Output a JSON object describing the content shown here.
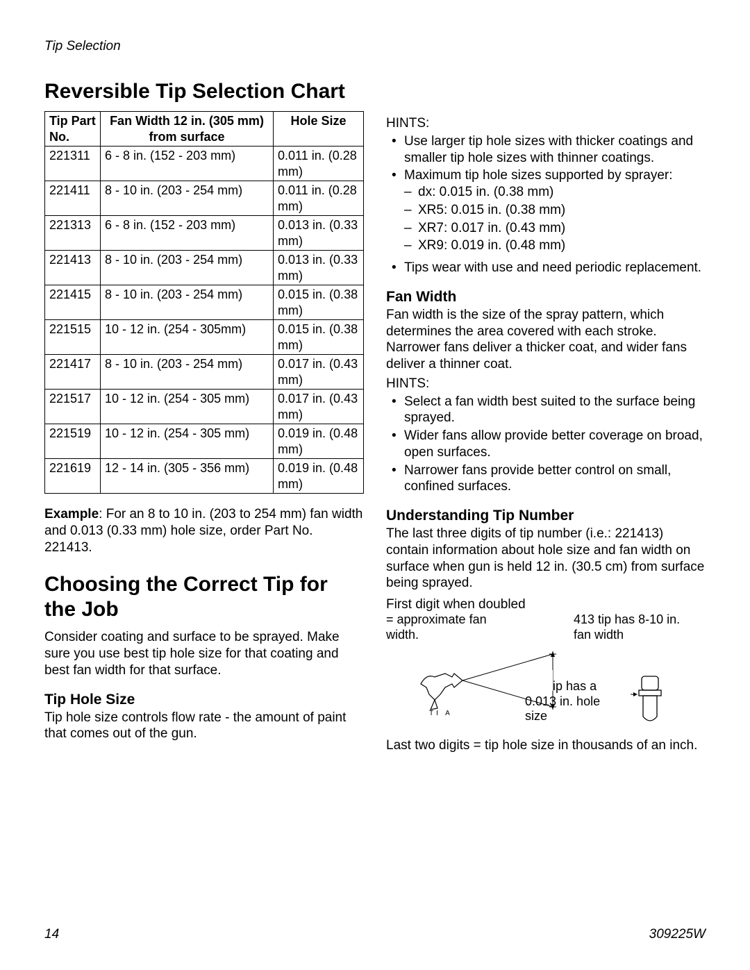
{
  "breadcrumb": "Tip Selection",
  "heading1": "Reversible Tip Selection Chart",
  "table": {
    "columns": [
      "Tip Part No.",
      "Fan Width 12 in. (305 mm) from surface",
      "Hole Size"
    ],
    "rows": [
      [
        "221311",
        "6 - 8 in. (152 - 203 mm)",
        "0.011 in. (0.28 mm)"
      ],
      [
        "221411",
        "8 - 10 in. (203 - 254 mm)",
        "0.011 in. (0.28 mm)"
      ],
      [
        "221313",
        "6 - 8 in. (152 - 203 mm)",
        "0.013 in. (0.33 mm)"
      ],
      [
        "221413",
        "8 - 10 in. (203 - 254 mm)",
        "0.013 in. (0.33 mm)"
      ],
      [
        "221415",
        "8 - 10 in. (203 - 254 mm)",
        "0.015 in. (0.38 mm)"
      ],
      [
        "221515",
        "10 - 12 in. (254 - 305mm)",
        "0.015 in. (0.38 mm)"
      ],
      [
        "221417",
        "8 - 10 in. (203 - 254 mm)",
        "0.017 in. (0.43 mm)"
      ],
      [
        "221517",
        "10 - 12 in. (254 - 305 mm)",
        "0.017 in. (0.43 mm)"
      ],
      [
        "221519",
        "10 - 12 in. (254 - 305 mm)",
        "0.019 in. (0.48 mm)"
      ],
      [
        "221619",
        "12 - 14 in. (305 - 356 mm)",
        "0.019 in. (0.48 mm)"
      ]
    ]
  },
  "example_label": "Example",
  "example_text": ": For an 8 to 10 in. (203 to 254 mm) fan width and 0.013 (0.33 mm) hole size, order Part No. 221413.",
  "heading2": "Choosing the Correct Tip for the Job",
  "choosing_p": "Consider coating and surface to be sprayed. Make sure you use best tip hole size for that coating and best fan width for that surface.",
  "tip_hole_size_h": "Tip Hole Size",
  "tip_hole_size_p": "Tip hole size controls flow rate - the amount of paint that comes out of the gun.",
  "hints_label": "HINTS:",
  "hints1": {
    "b1": "Use larger tip hole sizes with thicker coatings and smaller tip hole sizes with thinner coatings.",
    "b2": "Maximum tip hole sizes supported by sprayer:",
    "b2a": "dx: 0.015 in. (0.38 mm)",
    "b2b": "XR5: 0.015 in. (0.38 mm)",
    "b2c": "XR7: 0.017 in. (0.43 mm)",
    "b2d": "XR9: 0.019 in. (0.48 mm)",
    "b3": "Tips wear with use and need periodic replacement."
  },
  "fan_width_h": "Fan Width",
  "fan_width_p": "Fan width is the size of the spray pattern, which determines the area covered with each stroke. Narrower fans deliver a thicker coat, and wider fans deliver a thinner coat.",
  "hints2": {
    "b1": "Select a fan width best suited to the surface being sprayed.",
    "b2": "Wider fans allow provide better coverage on broad, open surfaces.",
    "b3": "Narrower fans provide better control on small, confined surfaces."
  },
  "understanding_h": "Understanding Tip Number",
  "understanding_p": "The last three digits of tip number (i.e.: 221413) contain information about hole size and fan width on surface when gun is held 12 in. (30.5 cm) from surface being sprayed.",
  "diag_line1": "First digit when doubled",
  "diag_approx": "= approximate fan width.",
  "diag_413_top": "413 tip has 8-10 in. fan width",
  "diag_413_mid": "413 tip has a 0.013 in. hole size",
  "diag_ti": "TI    A",
  "last_line": "Last two digits = tip hole size in thousands of an inch.",
  "page_num": "14",
  "doc_id": "309225W"
}
